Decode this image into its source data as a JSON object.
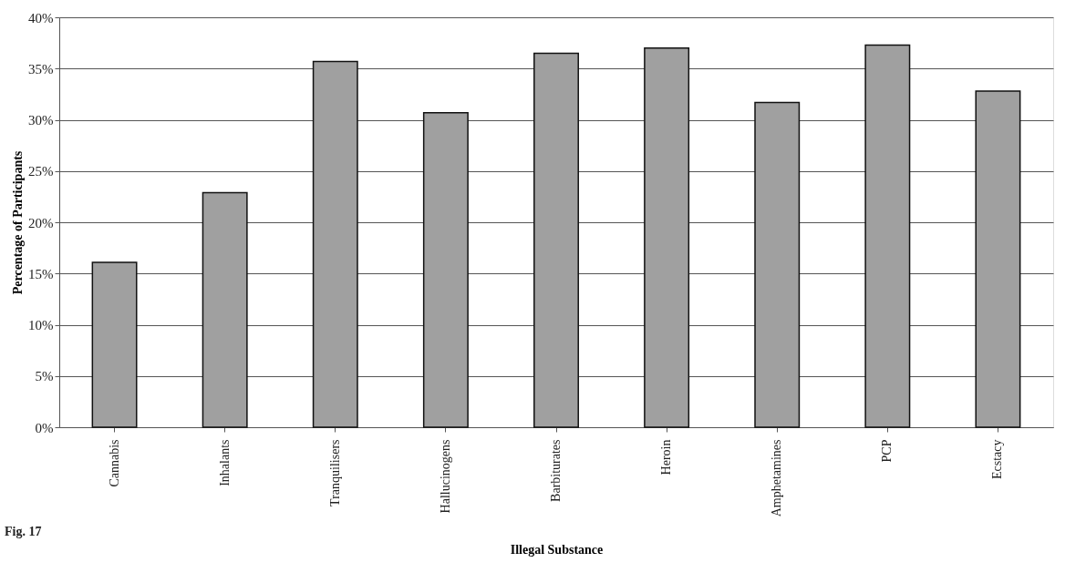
{
  "chart_data": {
    "type": "bar",
    "categories": [
      "Cannabis",
      "Inhalants",
      "Tranquilisers",
      "Hallucinogens",
      "Barbiturates",
      "Heroin",
      "Amphetamines",
      "PCP",
      "Ecstacy"
    ],
    "values": [
      16.1,
      22.9,
      35.7,
      30.7,
      36.5,
      37.0,
      31.7,
      37.3,
      32.8
    ],
    "color": "#a0a0a0",
    "xlabel": "Illegal Substance",
    "ylabel": "Percentage of Participants",
    "ylim": [
      0,
      40
    ],
    "yticks": [
      {
        "value": 0,
        "label": "0%"
      },
      {
        "value": 5,
        "label": "5%"
      },
      {
        "value": 10,
        "label": "10%"
      },
      {
        "value": 15,
        "label": "15%"
      },
      {
        "value": 20,
        "label": "20%"
      },
      {
        "value": 25,
        "label": "25%"
      },
      {
        "value": 30,
        "label": "30%"
      },
      {
        "value": 35,
        "label": "35%"
      },
      {
        "value": 40,
        "label": "40%"
      }
    ],
    "grid": "y",
    "annotations": [
      "Fig. 17"
    ]
  }
}
